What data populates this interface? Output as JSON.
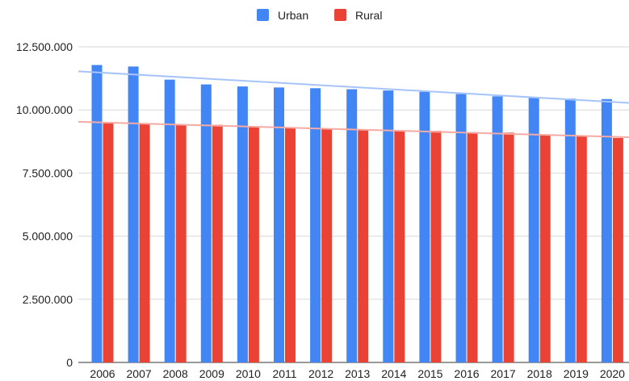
{
  "chart_data": {
    "type": "bar",
    "categories": [
      "2006",
      "2007",
      "2008",
      "2009",
      "2010",
      "2011",
      "2012",
      "2013",
      "2014",
      "2015",
      "2016",
      "2017",
      "2018",
      "2019",
      "2020"
    ],
    "series": [
      {
        "name": "Urban",
        "color": "#4285f4",
        "values": [
          11780000,
          11720000,
          11200000,
          11010000,
          10930000,
          10890000,
          10860000,
          10820000,
          10770000,
          10720000,
          10630000,
          10540000,
          10490000,
          10450000,
          10430000
        ]
      },
      {
        "name": "Rural",
        "color": "#ea4335",
        "values": [
          9470000,
          9440000,
          9420000,
          9410000,
          9330000,
          9300000,
          9250000,
          9230000,
          9190000,
          9170000,
          9120000,
          9100000,
          9030000,
          8990000,
          8890000
        ]
      }
    ],
    "trendlines": [
      {
        "series": "Urban",
        "color": "#a7c4fa",
        "start": 11530000,
        "end": 10280000
      },
      {
        "series": "Rural",
        "color": "#f5aaa4",
        "start": 9530000,
        "end": 8920000
      }
    ],
    "y_ticks": [
      "0",
      "2.500.000",
      "5.000.000",
      "7.500.000",
      "10.000.000",
      "12.500.000"
    ],
    "y_tick_values": [
      0,
      2500000,
      5000000,
      7500000,
      10000000,
      12500000
    ],
    "ylim": [
      0,
      12500000
    ],
    "grid": true,
    "legend": "top-center"
  }
}
